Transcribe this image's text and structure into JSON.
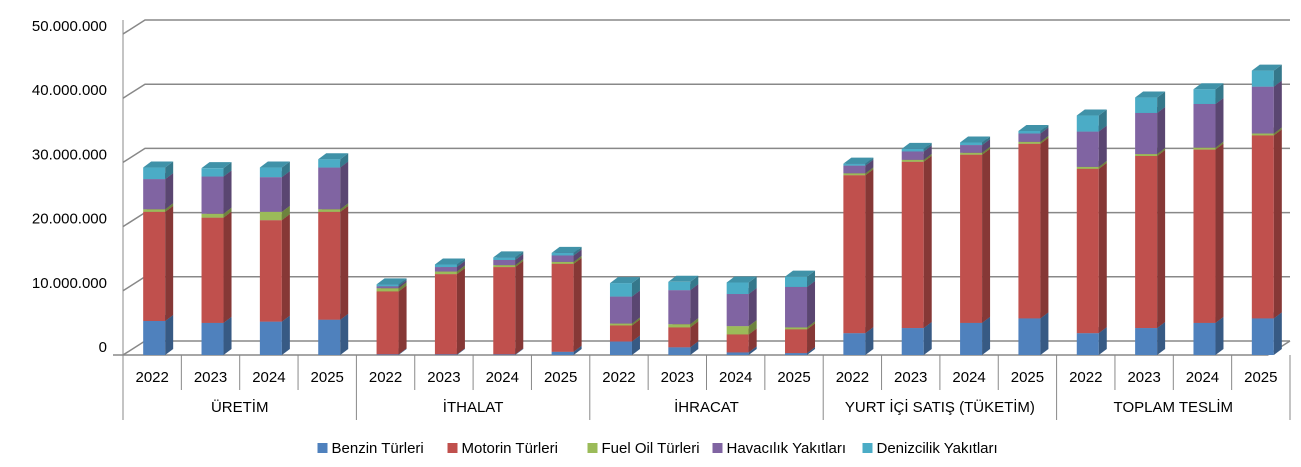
{
  "chart_data": {
    "type": "bar3d_stacked",
    "groups": [
      "ÜRETİM",
      "İTHALAT",
      "İHRACAT",
      "YURT İÇİ SATIŞ (TÜKETİM)",
      "TOPLAM TESLİM"
    ],
    "categories": [
      "2022",
      "2023",
      "2024",
      "2025",
      "2022",
      "2023",
      "2024",
      "2025",
      "2022",
      "2023",
      "2024",
      "2025",
      "2022",
      "2023",
      "2024",
      "2025",
      "2022",
      "2023",
      "2024",
      "2025"
    ],
    "series": [
      {
        "name": "Benzin Türleri",
        "color": "#4f81bd",
        "values": [
          5300000,
          5000000,
          5200000,
          5500000,
          100000,
          100000,
          100000,
          500000,
          2100000,
          1200000,
          400000,
          300000,
          3400000,
          4200000,
          5000000,
          5700000,
          3400000,
          4200000,
          5000000,
          5700000
        ]
      },
      {
        "name": "Motorin Türleri",
        "color": "#c0504d",
        "values": [
          17000000,
          16400000,
          15800000,
          16800000,
          9800000,
          12500000,
          13600000,
          13700000,
          2500000,
          3100000,
          2800000,
          3700000,
          24600000,
          25900000,
          26200000,
          27200000,
          25600000,
          26800000,
          27000000,
          28500000
        ]
      },
      {
        "name": "Fuel Oil Türleri",
        "color": "#9bbb59",
        "values": [
          400000,
          600000,
          1300000,
          400000,
          500000,
          400000,
          300000,
          300000,
          300000,
          500000,
          1300000,
          300000,
          300000,
          300000,
          300000,
          300000,
          300000,
          300000,
          300000,
          300000
        ]
      },
      {
        "name": "Havacılık Yakıtları",
        "color": "#8064a2",
        "values": [
          4700000,
          5800000,
          5400000,
          6500000,
          300000,
          700000,
          800000,
          1000000,
          4200000,
          5300000,
          5000000,
          6300000,
          1200000,
          1300000,
          1200000,
          1300000,
          5500000,
          6400000,
          6800000,
          7300000
        ]
      },
      {
        "name": "Denizcilik Yakıtları",
        "color": "#4bacc6",
        "values": [
          1800000,
          1300000,
          1500000,
          1300000,
          300000,
          400000,
          400000,
          400000,
          2100000,
          1300000,
          1800000,
          1600000,
          300000,
          400000,
          400000,
          400000,
          2500000,
          2400000,
          2300000,
          2500000
        ]
      }
    ],
    "ylim": [
      0,
      50000000
    ],
    "yticks": [
      0,
      {
        "value": 10000000,
        "label": "10.000.000"
      },
      {
        "value": 20000000,
        "label": "20.000.000"
      },
      {
        "value": 30000000,
        "label": "30.000.000"
      },
      {
        "value": 40000000,
        "label": "40.000.000"
      },
      {
        "value": 50000000,
        "label": "50.000.000"
      }
    ],
    "grid": true,
    "legend": "bottom"
  }
}
